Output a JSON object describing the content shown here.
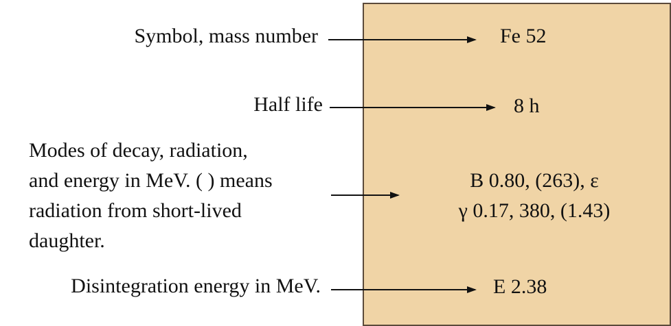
{
  "rows": [
    {
      "label": [
        "Symbol, mass number"
      ],
      "value": [
        "Fe 52"
      ]
    },
    {
      "label": [
        "Half life"
      ],
      "value": [
        "8 h"
      ]
    },
    {
      "label": [
        "Modes of decay, radiation,",
        "and energy in MeV. ( ) means",
        "radiation from short-lived",
        "daughter."
      ],
      "value": [
        "B 0.80, (263), ε",
        "γ 0.17, 380, (1.43)"
      ]
    },
    {
      "label": [
        "Disintegration energy in MeV."
      ],
      "value": [
        "E 2.38"
      ]
    }
  ]
}
